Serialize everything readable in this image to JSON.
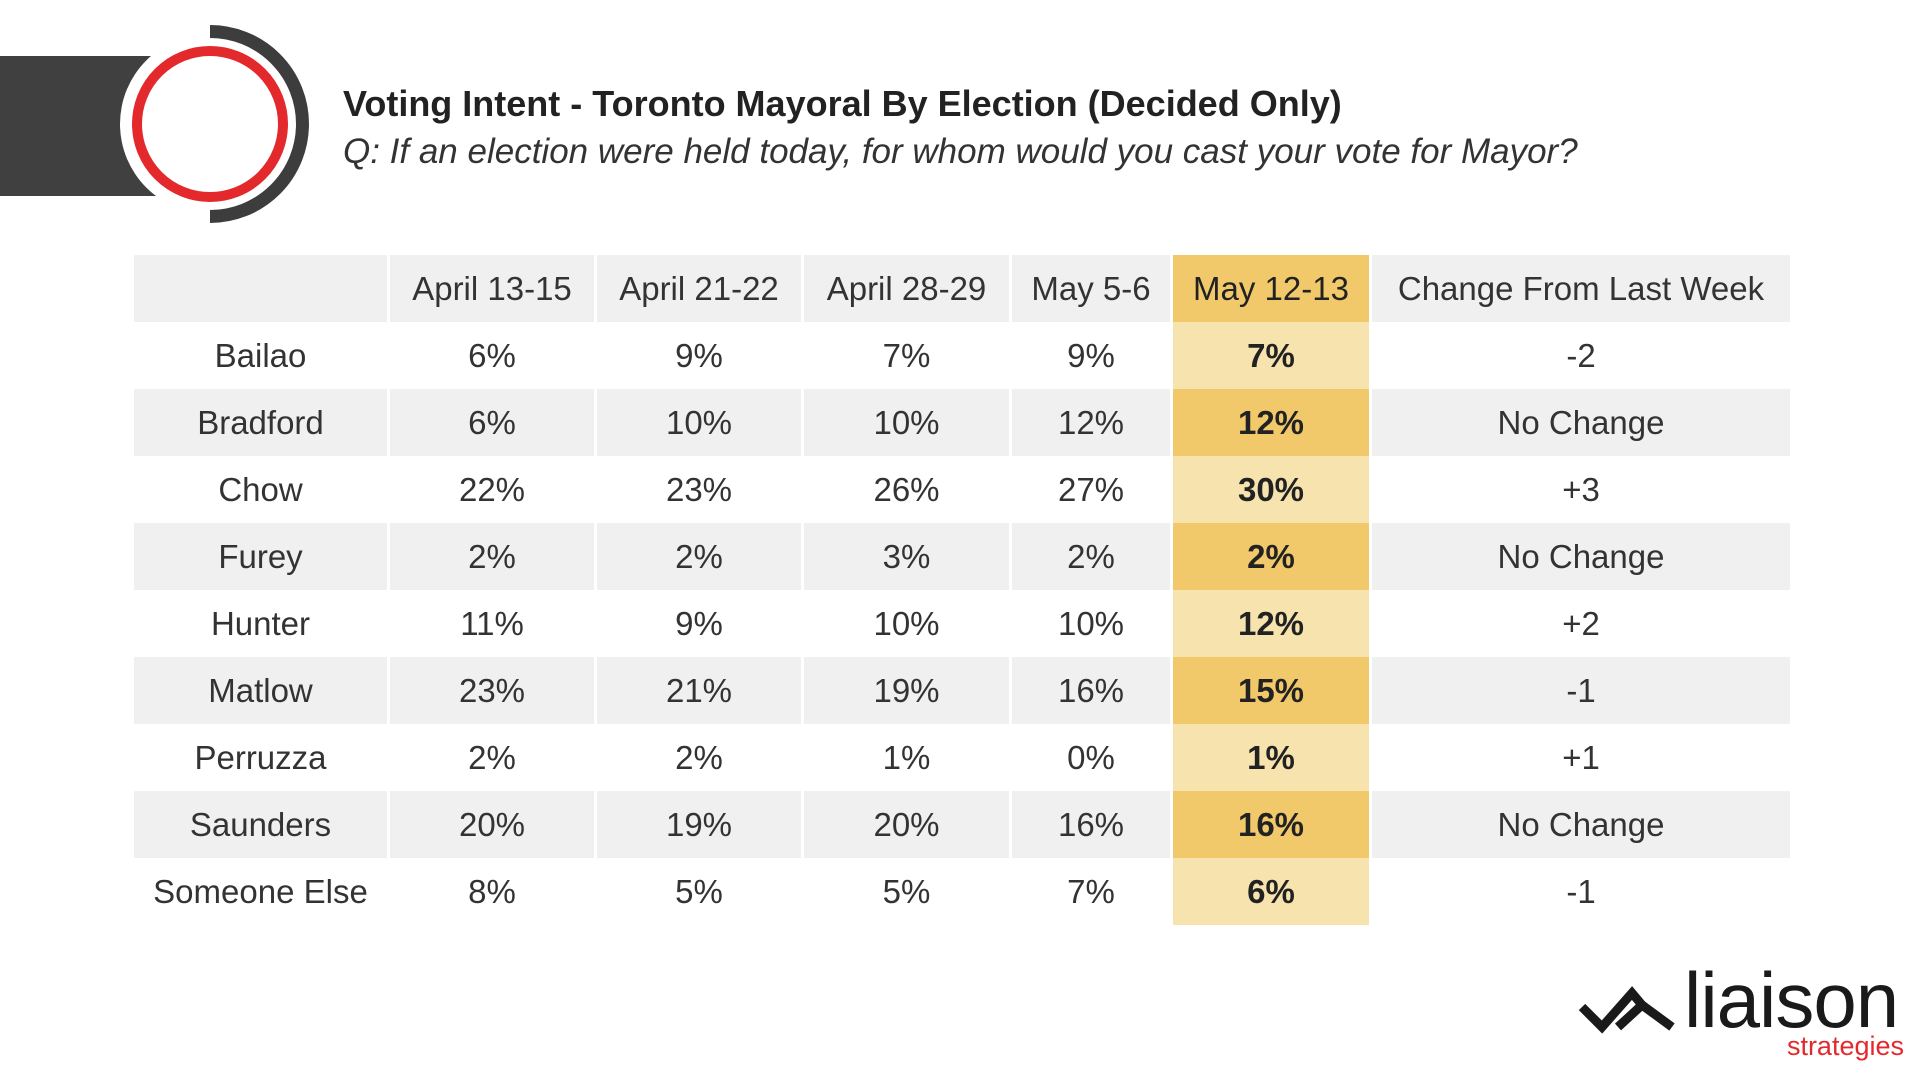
{
  "header": {
    "title": "Voting Intent - Toronto Mayoral By Election (Decided Only)",
    "subtitle": "Q: If an election were held today, for whom would you cast your vote for Mayor?"
  },
  "chart_data": {
    "type": "table",
    "columns": [
      "",
      "April 13-15",
      "April 21-22",
      "April 28-29",
      "May 5-6",
      "May 12-13",
      "Change From Last Week"
    ],
    "highlight_column": "May 12-13",
    "rows": [
      {
        "candidate": "Bailao",
        "values": [
          "6%",
          "9%",
          "7%",
          "9%",
          "7%"
        ],
        "change": "-2"
      },
      {
        "candidate": "Bradford",
        "values": [
          "6%",
          "10%",
          "10%",
          "12%",
          "12%"
        ],
        "change": "No Change"
      },
      {
        "candidate": "Chow",
        "values": [
          "22%",
          "23%",
          "26%",
          "27%",
          "30%"
        ],
        "change": "+3"
      },
      {
        "candidate": "Furey",
        "values": [
          "2%",
          "2%",
          "3%",
          "2%",
          "2%"
        ],
        "change": "No Change"
      },
      {
        "candidate": "Hunter",
        "values": [
          "11%",
          "9%",
          "10%",
          "10%",
          "12%"
        ],
        "change": "+2"
      },
      {
        "candidate": "Matlow",
        "values": [
          "23%",
          "21%",
          "19%",
          "16%",
          "15%"
        ],
        "change": "-1"
      },
      {
        "candidate": "Perruzza",
        "values": [
          "2%",
          "2%",
          "1%",
          "0%",
          "1%"
        ],
        "change": "+1"
      },
      {
        "candidate": "Saunders",
        "values": [
          "20%",
          "19%",
          "20%",
          "16%",
          "16%"
        ],
        "change": "No Change"
      },
      {
        "candidate": "Someone Else",
        "values": [
          "8%",
          "5%",
          "5%",
          "7%",
          "6%"
        ],
        "change": "-1"
      }
    ]
  },
  "branding": {
    "name": "liaison",
    "tagline": "strategies",
    "colors": {
      "accent": "#e3292c",
      "dark": "#404041",
      "highlight": "#f1c96a",
      "highlight_light": "#f7e3ae",
      "row_shade": "#f0f0f1"
    },
    "icons": [
      "ring-logo-icon",
      "liaison-chevron-icon"
    ]
  }
}
